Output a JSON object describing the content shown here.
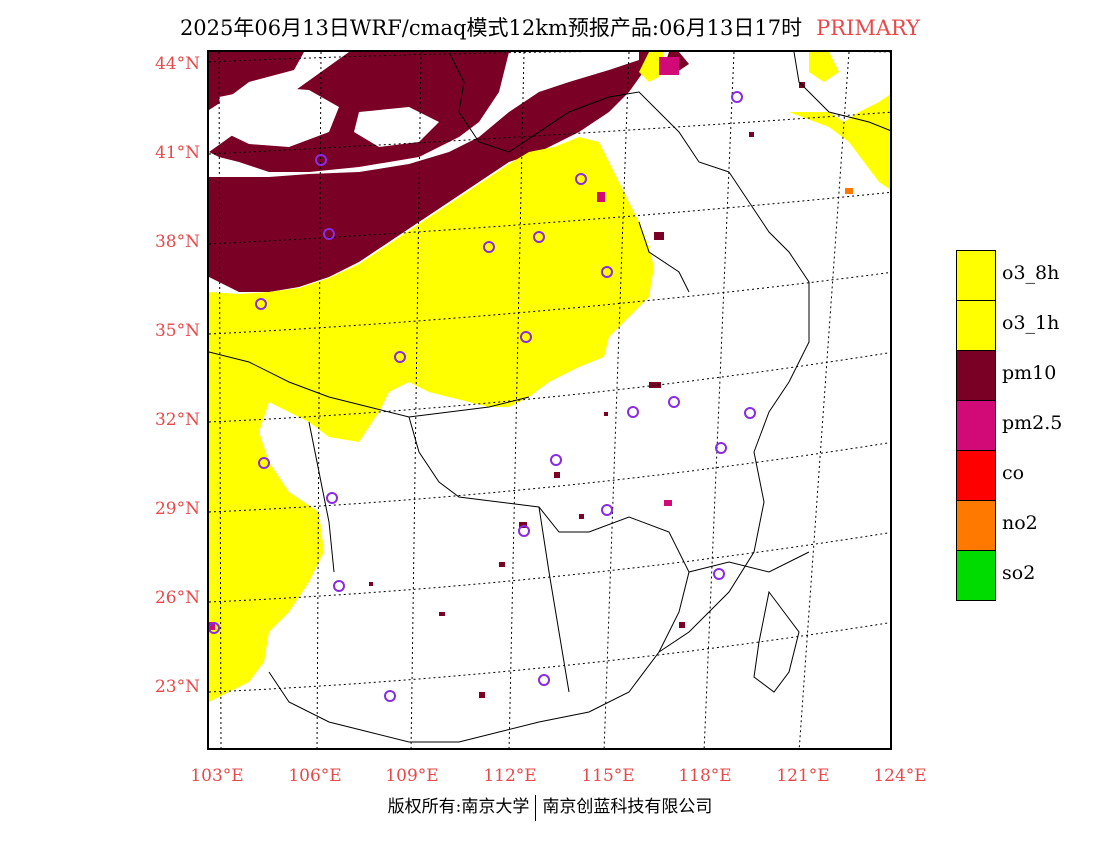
{
  "title": {
    "main": "2025年06月13日WRF/cmaq模式12km预报产品:06月13日17时",
    "tag": "PRIMARY"
  },
  "lat_labels": [
    "44°N",
    "41°N",
    "38°N",
    "35°N",
    "32°N",
    "29°N",
    "26°N",
    "23°N"
  ],
  "lon_labels": [
    "103°E",
    "106°E",
    "109°E",
    "112°E",
    "115°E",
    "118°E",
    "121°E",
    "124°E"
  ],
  "legend": {
    "items": [
      {
        "label": "o3_8h",
        "color": "#ffff00"
      },
      {
        "label": "o3_1h",
        "color": "#ffff00"
      },
      {
        "label": "pm10",
        "color": "#7a0026"
      },
      {
        "label": "pm2.5",
        "color": "#d20a78"
      },
      {
        "label": "co",
        "color": "#ff0000"
      },
      {
        "label": "no2",
        "color": "#ff7800"
      },
      {
        "label": "so2",
        "color": "#00dc00"
      }
    ]
  },
  "colors": {
    "label_red": "#e8484a",
    "station_marker": "#8a2be2"
  },
  "copyright": {
    "left": "版权所有:南京大学",
    "right": "南京创蓝科技有限公司"
  }
}
